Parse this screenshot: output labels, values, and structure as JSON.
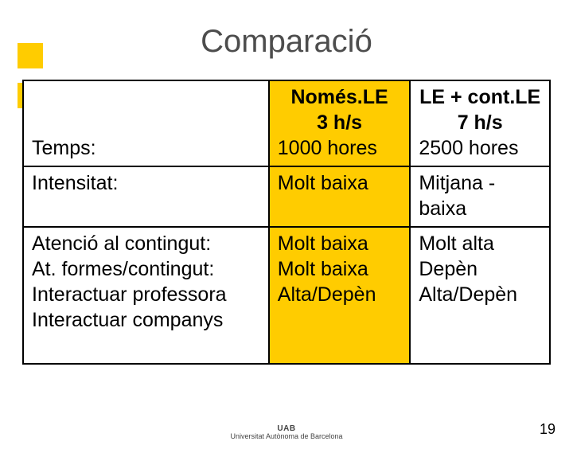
{
  "slide": {
    "title": "Comparació",
    "page_number": "19",
    "accent_color": "#ffcc00",
    "logo_line1": "UAB",
    "logo_line2": "Universitat Autònoma de Barcelona"
  },
  "table": {
    "header": {
      "label": "Temps:",
      "col_a": {
        "top": "Només.LE",
        "mid": "3 h/s",
        "bot": "1000 hores"
      },
      "col_b": {
        "top": "LE + cont.LE",
        "mid": "7 h/s",
        "bot": "2500 hores"
      }
    },
    "rows": [
      {
        "label": "Intensitat:",
        "a": "Molt baixa",
        "b": "Mitjana - baixa"
      },
      {
        "label_lines": [
          "Atenció al contingut:",
          "At.  formes/contingut:",
          "Interactuar professora",
          "Interactuar companys"
        ],
        "a_lines": [
          "Molt baixa",
          "Molt baixa",
          "Alta/Depèn"
        ],
        "b_lines": [
          "Molt alta",
          "Depèn",
          "Alta/Depèn"
        ]
      }
    ]
  }
}
